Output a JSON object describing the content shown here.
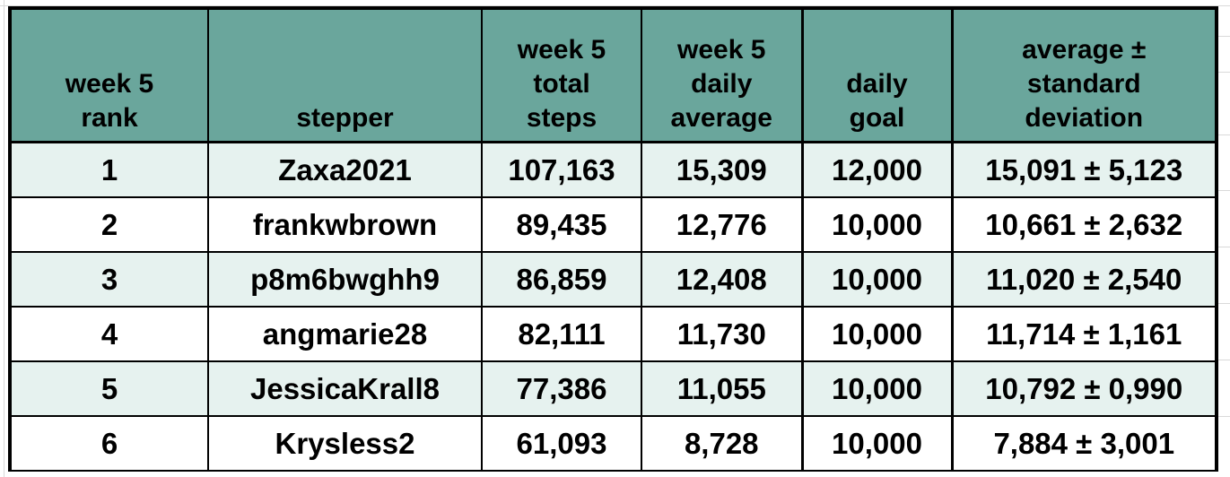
{
  "colors": {
    "header_bg": "#6aa69c",
    "row_alt_bg": "#e6f2ef",
    "row_bg": "#ffffff",
    "text": "#000000",
    "border": "#000000"
  },
  "table": {
    "headers": {
      "rank": [
        "week 5",
        "rank"
      ],
      "stepper": [
        "stepper"
      ],
      "total_steps": [
        "week 5",
        "total",
        "steps"
      ],
      "daily_average": [
        "week 5",
        "daily",
        "average"
      ],
      "daily_goal": [
        "daily",
        "goal"
      ],
      "avg_sd": [
        "average ±",
        "standard",
        "deviation"
      ]
    },
    "rows": [
      {
        "rank": "1",
        "stepper": "Zaxa2021",
        "total_steps": "107,163",
        "daily_average": "15,309",
        "daily_goal": "12,000",
        "avg_sd": "15,091 ± 5,123"
      },
      {
        "rank": "2",
        "stepper": "frankwbrown",
        "total_steps": "89,435",
        "daily_average": "12,776",
        "daily_goal": "10,000",
        "avg_sd": "10,661 ± 2,632"
      },
      {
        "rank": "3",
        "stepper": "p8m6bwghh9",
        "total_steps": "86,859",
        "daily_average": "12,408",
        "daily_goal": "10,000",
        "avg_sd": "11,020 ± 2,540"
      },
      {
        "rank": "4",
        "stepper": "angmarie28",
        "total_steps": "82,111",
        "daily_average": "11,730",
        "daily_goal": "10,000",
        "avg_sd": "11,714 ± 1,161"
      },
      {
        "rank": "5",
        "stepper": "JessicaKrall8",
        "total_steps": "77,386",
        "daily_average": "11,055",
        "daily_goal": "10,000",
        "avg_sd": "10,792 ± 0,990"
      },
      {
        "rank": "6",
        "stepper": "Krysless2",
        "total_steps": "61,093",
        "daily_average": "8,728",
        "daily_goal": "10,000",
        "avg_sd": "7,884 ± 3,001"
      }
    ]
  }
}
